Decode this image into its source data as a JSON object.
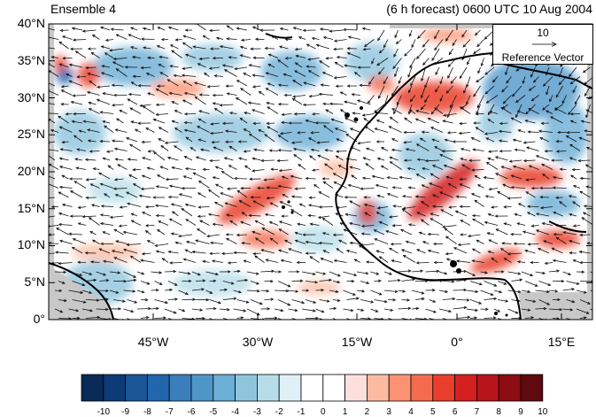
{
  "header": {
    "left_title": "Ensemble 4",
    "right_title": "(6 h forecast) 0600 UTC 10 Aug 2004"
  },
  "map": {
    "lon_range": [
      -60,
      18
    ],
    "lat_range": [
      0,
      40
    ],
    "y_ticks": [
      "40°N",
      "35°N",
      "30°N",
      "25°N",
      "20°N",
      "15°N",
      "10°N",
      "5°N",
      "0°"
    ],
    "x_ticks": [
      "45°W",
      "30°W",
      "15°W",
      "0°",
      "15°E"
    ],
    "coastline_color": "#000000",
    "land_mask_color": "#c8c8c8"
  },
  "reference_vector": {
    "magnitude": "10",
    "label": "Reference Vector"
  },
  "colorbar": {
    "labels": [
      "-10",
      "-9",
      "-8",
      "-7",
      "-6",
      "-5",
      "-4",
      "-3",
      "-2",
      "-1",
      "0",
      "1",
      "2",
      "3",
      "4",
      "5",
      "6",
      "7",
      "8",
      "9",
      "10"
    ],
    "colors": [
      "#0a2a57",
      "#0d3b78",
      "#1a5596",
      "#2166ac",
      "#3a7fbc",
      "#4f96c8",
      "#6baed6",
      "#8fc4dd",
      "#b7dde8",
      "#dff0f6",
      "#ffffff",
      "#ffffff",
      "#fde0dd",
      "#fcbba1",
      "#fc9272",
      "#f46b4e",
      "#ea3e2c",
      "#d42020",
      "#b8141c",
      "#8e0c14",
      "#5e0a0e"
    ]
  }
}
